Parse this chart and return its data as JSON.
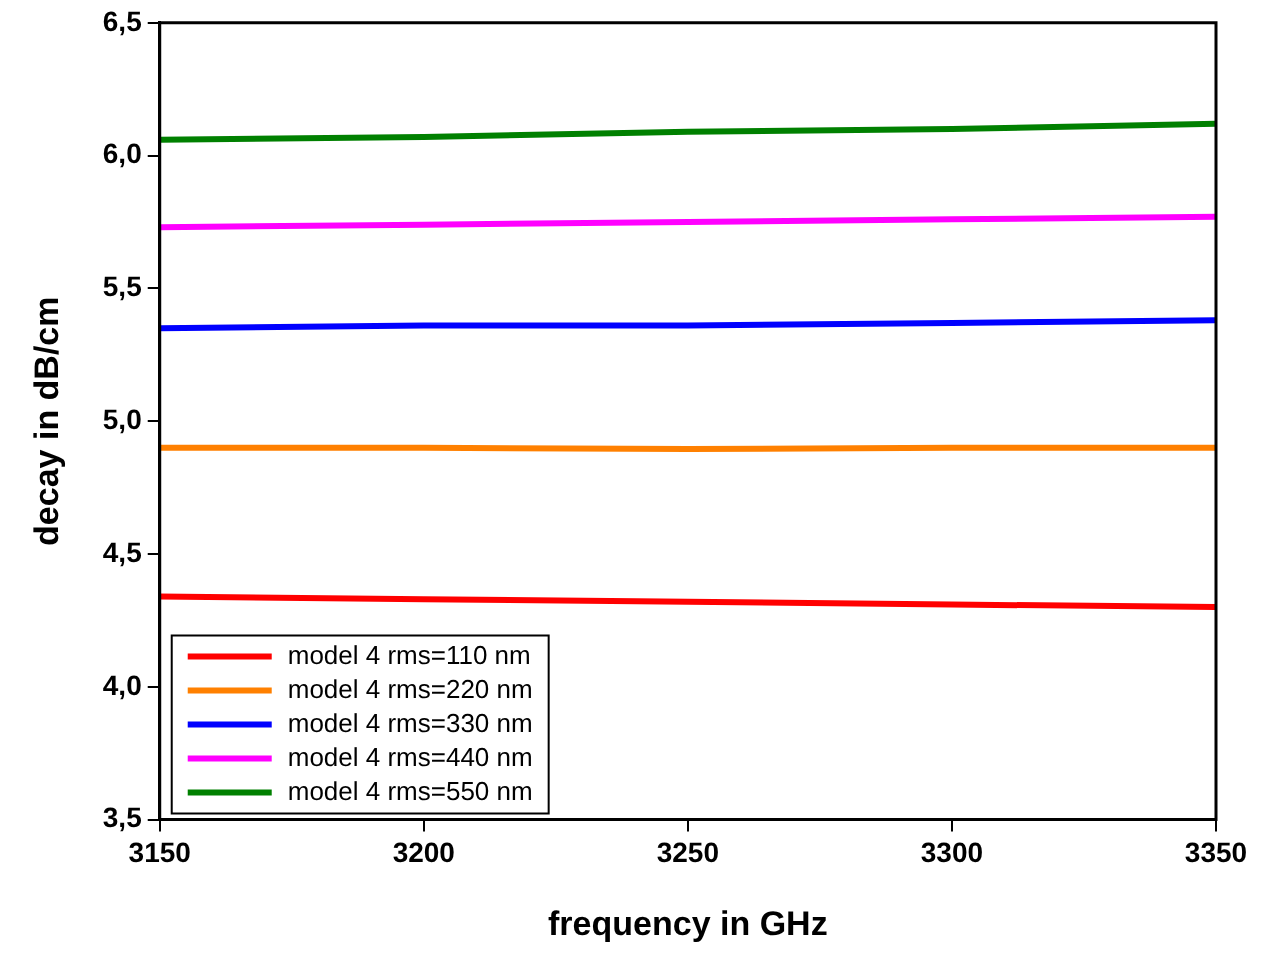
{
  "chart_data": {
    "type": "line",
    "xlabel": "frequency in GHz",
    "ylabel": "decay in dB/cm",
    "x": [
      3150,
      3200,
      3250,
      3300,
      3350
    ],
    "series": [
      {
        "name": "model 4 rms=110 nm",
        "color": "#ff0000",
        "values": [
          4.34,
          4.33,
          4.32,
          4.31,
          4.3
        ]
      },
      {
        "name": "model 4 rms=220 nm",
        "color": "#ff8000",
        "values": [
          4.9,
          4.9,
          4.895,
          4.9,
          4.9
        ]
      },
      {
        "name": "model 4 rms=330 nm",
        "color": "#0000ff",
        "values": [
          5.35,
          5.36,
          5.36,
          5.37,
          5.38
        ]
      },
      {
        "name": "model 4 rms=440 nm",
        "color": "#ff00ff",
        "values": [
          5.73,
          5.74,
          5.75,
          5.76,
          5.77
        ]
      },
      {
        "name": "model 4 rms=550 nm",
        "color": "#008000",
        "values": [
          6.06,
          6.07,
          6.09,
          6.1,
          6.12
        ]
      }
    ],
    "xlim": [
      3150,
      3350
    ],
    "xticks": [
      3150,
      3200,
      3250,
      3300,
      3350
    ],
    "ylim": [
      3.5,
      6.5
    ],
    "yticks": [
      {
        "value": 3.5,
        "label": "3,5"
      },
      {
        "value": 4.0,
        "label": "4,0"
      },
      {
        "value": 4.5,
        "label": "4,5"
      },
      {
        "value": 5.0,
        "label": "5,0"
      },
      {
        "value": 5.5,
        "label": "5,5"
      },
      {
        "value": 6.0,
        "label": "6,0"
      },
      {
        "value": 6.5,
        "label": "6,5"
      }
    ],
    "grid": false,
    "legend": "bottom left",
    "marker": "none",
    "line_style": "solid"
  }
}
